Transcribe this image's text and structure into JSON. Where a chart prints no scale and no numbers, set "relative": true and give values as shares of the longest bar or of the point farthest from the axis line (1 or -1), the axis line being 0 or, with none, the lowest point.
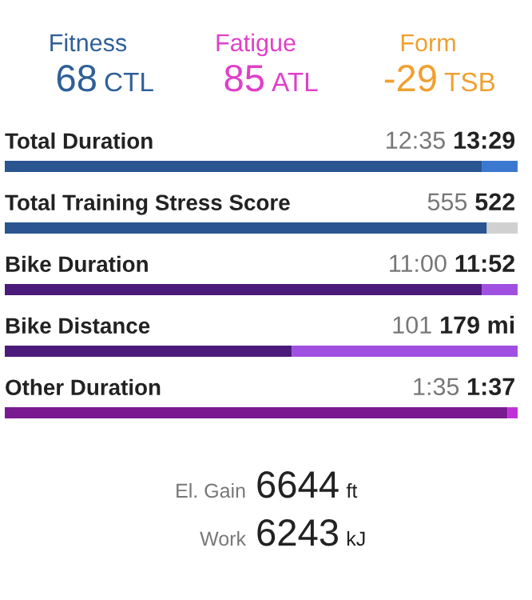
{
  "chart_data": [
    {
      "type": "other",
      "annotations": [
        "Fitness",
        "68",
        "CTL",
        "Fatigue",
        "85",
        "ATL",
        "Form",
        "-29",
        "TSB"
      ],
      "colors": [
        "#2f5f98",
        "#e040c8",
        "#f0a030"
      ]
    },
    {
      "type": "bar",
      "orientation": "horizontal",
      "stacked": true,
      "relative": true,
      "categories": [
        "Total Duration",
        "Total Training Stress Score",
        "Bike Duration",
        "Bike Distance",
        "Other Duration"
      ],
      "series": [
        {
          "colors": [
            "#2a5590",
            "#2a5590",
            "#4b1a7a",
            "#4b1a7a",
            "#7a1a90"
          ],
          "values": [
            0.93,
            0.94,
            0.93,
            0.56,
            0.98
          ]
        },
        {
          "colors": [
            "#3b78d0",
            "#d0d0d0",
            "#a050e0",
            "#a050e0",
            "#c030d8"
          ],
          "values": [
            0.07,
            0.06,
            0.07,
            0.44,
            0.02
          ]
        }
      ],
      "annotations": [
        "12:35",
        "13:29",
        "555",
        "522",
        "11:00",
        "11:52",
        "101",
        "179 mi",
        "1:35",
        "1:37"
      ]
    },
    {
      "type": "other",
      "annotations": [
        "El. Gain",
        "6644",
        "ft",
        "Work",
        "6243",
        "kJ"
      ]
    }
  ]
}
